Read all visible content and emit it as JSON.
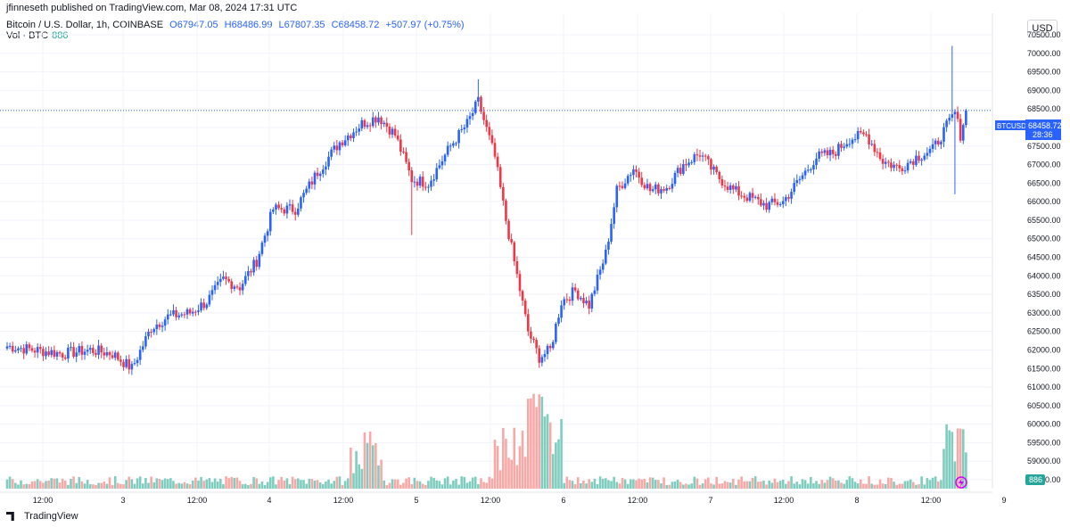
{
  "header": {
    "published": "jfinneseth published on TradingView.com, Mar 08, 2024 17:31 UTC"
  },
  "legend": {
    "symbol": "Bitcoin / U.S. Dollar, 1h, COINBASE",
    "open": "O67947.05",
    "high": "H68486.99",
    "low": "L67807.35",
    "close": "C68458.72",
    "change": "+507.97 (+0.75%)"
  },
  "volume": {
    "label": "Vol · BTC",
    "value": "886"
  },
  "currency_button": "USD",
  "price_tag": {
    "ticker": "BTCUSD",
    "price": "68458.72",
    "countdown": "28:36"
  },
  "brand": "TradingView",
  "colors": {
    "up": "#2962ff",
    "down": "#f23645",
    "vol_up": "#7fcdbf",
    "vol_down": "#f7a9a7",
    "grid": "#f0f3fa"
  },
  "chart_data": {
    "type": "candlestick",
    "timeframe": "1h",
    "y_ticks": [
      "70500.00",
      "70000.00",
      "69500.00",
      "69000.00",
      "68500.00",
      "68000.00",
      "67500.00",
      "67000.00",
      "66500.00",
      "66000.00",
      "65500.00",
      "65000.00",
      "64500.00",
      "64000.00",
      "63500.00",
      "63000.00",
      "62500.00",
      "62000.00",
      "61500.00",
      "61000.00",
      "60500.00",
      "60000.00",
      "59500.00",
      "59000.00",
      "58500.00"
    ],
    "x_ticks": [
      "12:00",
      "3",
      "12:00",
      "4",
      "12:00",
      "5",
      "12:00",
      "6",
      "12:00",
      "7",
      "12:00",
      "8",
      "12:00",
      "9"
    ],
    "ylim": [
      58500,
      70500
    ],
    "last_price": 68458.72,
    "anchors": [
      [
        0,
        62100
      ],
      [
        20,
        61900
      ],
      [
        30,
        62000
      ],
      [
        38,
        61900
      ],
      [
        45,
        61500
      ],
      [
        52,
        62600
      ],
      [
        58,
        62900
      ],
      [
        66,
        63000
      ],
      [
        72,
        63300
      ],
      [
        78,
        63900
      ],
      [
        84,
        63700
      ],
      [
        90,
        64400
      ],
      [
        96,
        65800
      ],
      [
        104,
        65800
      ],
      [
        112,
        66800
      ],
      [
        120,
        67600
      ],
      [
        128,
        68100
      ],
      [
        134,
        68300
      ],
      [
        140,
        67800
      ],
      [
        146,
        66600
      ],
      [
        152,
        66500
      ],
      [
        160,
        67500
      ],
      [
        166,
        68100
      ],
      [
        170,
        68700
      ],
      [
        176,
        67200
      ],
      [
        180,
        65500
      ],
      [
        184,
        64000
      ],
      [
        188,
        62500
      ],
      [
        192,
        61800
      ],
      [
        196,
        62000
      ],
      [
        200,
        63300
      ],
      [
        205,
        63600
      ],
      [
        210,
        63200
      ],
      [
        216,
        64600
      ],
      [
        220,
        66300
      ],
      [
        226,
        66900
      ],
      [
        232,
        66300
      ],
      [
        238,
        66400
      ],
      [
        244,
        67000
      ],
      [
        250,
        67300
      ],
      [
        256,
        66700
      ],
      [
        262,
        66300
      ],
      [
        268,
        66100
      ],
      [
        274,
        65900
      ],
      [
        280,
        66000
      ],
      [
        286,
        66600
      ],
      [
        292,
        67200
      ],
      [
        298,
        67300
      ],
      [
        304,
        67700
      ],
      [
        310,
        67800
      ],
      [
        316,
        67100
      ],
      [
        322,
        66900
      ],
      [
        328,
        67200
      ],
      [
        334,
        67400
      ],
      [
        338,
        67900
      ],
      [
        342,
        68400
      ],
      [
        344,
        67800
      ],
      [
        346,
        68458.72
      ]
    ],
    "volume_bars": 347
  }
}
